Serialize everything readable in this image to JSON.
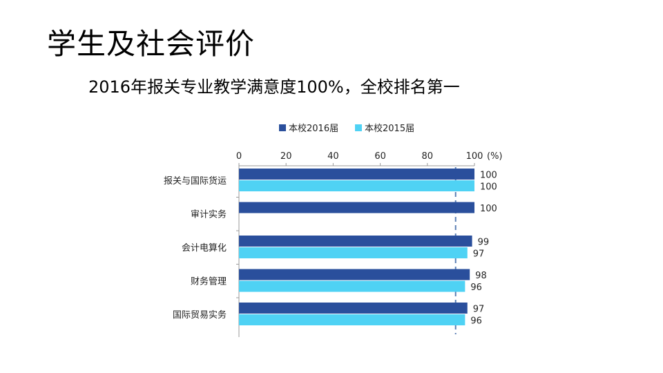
{
  "slide": {
    "title": "学生及社会评价",
    "subtitle": "2016年报关专业教学满意度100%，全校排名第一"
  },
  "chart_data": {
    "type": "bar",
    "orientation": "horizontal",
    "categories": [
      "报关与国际货运",
      "审计实务",
      "会计电算化",
      "财务管理",
      "国际贸易实务"
    ],
    "series": [
      {
        "name": "本校2016届",
        "values": [
          100,
          100,
          99,
          98,
          97
        ],
        "color": "#2a4f9c"
      },
      {
        "name": "本校2015届",
        "values": [
          100,
          null,
          97,
          96,
          96
        ],
        "color": "#4fd2f4"
      }
    ],
    "x_ticks": [
      "0",
      "20",
      "40",
      "60",
      "80",
      "100"
    ],
    "x_unit": "(%)",
    "xlim": [
      0,
      100
    ],
    "reference_line": 92,
    "reference_color": "#5b7fb4",
    "legend_position": "top",
    "grid": false
  }
}
